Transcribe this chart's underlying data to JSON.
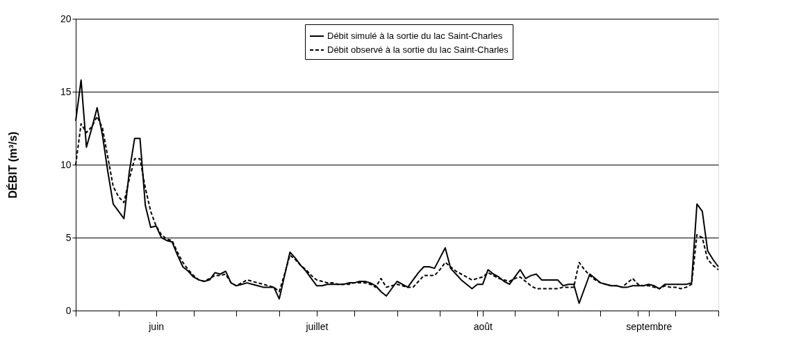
{
  "chart_data": {
    "type": "line",
    "ylabel": "DÉBIT (m³/s)",
    "categories": [
      null,
      null,
      null,
      null,
      null,
      null,
      null,
      null,
      null,
      null,
      null,
      null,
      null,
      null,
      null,
      "juin",
      null,
      null,
      null,
      null,
      null,
      null,
      null,
      null,
      null,
      null,
      null,
      null,
      null,
      null,
      null,
      null,
      null,
      null,
      null,
      null,
      null,
      null,
      null,
      null,
      null,
      null,
      null,
      null,
      null,
      "juillet",
      null,
      null,
      null,
      null,
      null,
      null,
      null,
      null,
      null,
      null,
      null,
      null,
      null,
      null,
      null,
      null,
      null,
      null,
      null,
      null,
      null,
      null,
      null,
      null,
      null,
      null,
      null,
      null,
      null,
      null,
      "août",
      null,
      null,
      null,
      null,
      null,
      null,
      null,
      null,
      null,
      null,
      null,
      null,
      null,
      null,
      null,
      null,
      null,
      null,
      null,
      null,
      null,
      null,
      null,
      null,
      null,
      null,
      null,
      null,
      null,
      null,
      "septembre",
      null,
      null,
      null,
      null,
      null,
      null,
      null,
      null,
      null,
      null,
      null,
      null,
      null
    ],
    "ylim": [
      0,
      20
    ],
    "yticks": [
      0,
      5,
      10,
      15,
      20
    ],
    "grid": "y",
    "legend": "top",
    "marker": "none",
    "series": [
      {
        "name": "Débit simulé à la sortie du lac Saint-Charles",
        "color": "#000000",
        "line_style": "solid",
        "values": [
          13.0,
          15.8,
          11.2,
          12.5,
          13.9,
          12.0,
          9.5,
          7.3,
          6.8,
          6.3,
          9.5,
          11.8,
          11.8,
          7.2,
          5.7,
          5.8,
          5.0,
          4.8,
          4.7,
          3.8,
          3.0,
          2.7,
          2.3,
          2.1,
          2.0,
          2.1,
          2.6,
          2.5,
          2.7,
          1.9,
          1.7,
          1.8,
          1.9,
          1.8,
          1.7,
          1.6,
          1.6,
          1.6,
          0.8,
          2.4,
          4.0,
          3.6,
          3.1,
          2.7,
          2.2,
          1.7,
          1.7,
          1.8,
          1.8,
          1.8,
          1.8,
          1.9,
          1.9,
          2.0,
          2.0,
          1.9,
          1.7,
          1.3,
          1.0,
          1.5,
          2.0,
          1.8,
          1.6,
          2.1,
          2.6,
          3.0,
          3.0,
          2.9,
          3.6,
          4.3,
          2.9,
          2.5,
          2.1,
          1.8,
          1.5,
          1.8,
          1.8,
          2.8,
          2.5,
          2.3,
          2.0,
          1.8,
          2.3,
          2.8,
          2.2,
          2.4,
          2.5,
          2.1,
          2.1,
          2.1,
          2.1,
          1.7,
          1.8,
          1.8,
          0.5,
          1.5,
          2.5,
          2.2,
          1.9,
          1.8,
          1.7,
          1.7,
          1.6,
          1.6,
          1.7,
          1.7,
          1.7,
          1.8,
          1.7,
          1.5,
          1.8,
          1.8,
          1.8,
          1.8,
          1.8,
          1.9,
          7.3,
          6.8,
          4.1,
          3.5,
          3.0
        ]
      },
      {
        "name": "Débit observé à la sortie du lac Saint-Charles",
        "color": "#000000",
        "line_style": "dashed",
        "values": [
          10.0,
          12.8,
          12.2,
          12.6,
          13.3,
          12.5,
          10.5,
          8.5,
          7.8,
          7.4,
          9.0,
          10.4,
          10.4,
          8.4,
          6.8,
          5.8,
          5.2,
          4.9,
          4.8,
          4.0,
          3.3,
          2.8,
          2.4,
          2.1,
          2.0,
          2.2,
          2.4,
          2.4,
          2.5,
          1.9,
          1.7,
          1.9,
          2.1,
          2.0,
          1.9,
          1.8,
          1.7,
          1.6,
          1.3,
          2.5,
          3.8,
          3.5,
          3.1,
          2.8,
          2.4,
          2.1,
          2.0,
          1.9,
          1.9,
          1.8,
          1.8,
          1.8,
          1.9,
          1.9,
          1.9,
          1.8,
          1.6,
          2.2,
          1.6,
          1.7,
          1.8,
          1.7,
          1.6,
          1.6,
          2.0,
          2.4,
          2.4,
          2.4,
          2.8,
          3.3,
          3.0,
          2.7,
          2.5,
          2.3,
          2.1,
          2.2,
          2.3,
          2.6,
          2.4,
          2.2,
          2.1,
          2.0,
          2.2,
          2.3,
          2.0,
          1.7,
          1.5,
          1.5,
          1.5,
          1.5,
          1.5,
          1.6,
          1.6,
          1.6,
          3.3,
          2.8,
          2.4,
          2.1,
          1.9,
          1.8,
          1.7,
          1.7,
          1.6,
          1.9,
          2.2,
          1.8,
          1.7,
          1.7,
          1.6,
          1.5,
          1.7,
          1.6,
          1.6,
          1.5,
          1.6,
          1.8,
          5.2,
          5.0,
          3.5,
          3.1,
          2.8
        ]
      }
    ]
  }
}
